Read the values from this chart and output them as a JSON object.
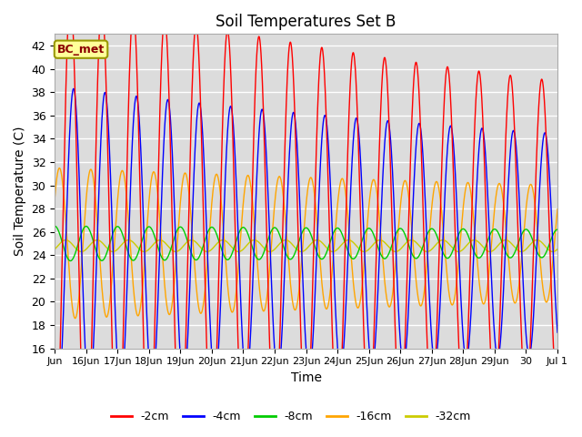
{
  "title": "Soil Temperatures Set B",
  "xlabel": "Time",
  "ylabel": "Soil Temperature (C)",
  "ylim": [
    16,
    43
  ],
  "yticks": [
    16,
    18,
    20,
    22,
    24,
    26,
    28,
    30,
    32,
    34,
    36,
    38,
    40,
    42
  ],
  "annotation": "BC_met",
  "annotation_color": "#8B0000",
  "annotation_bg": "#FFFF99",
  "annotation_border": "#999900",
  "colors": {
    "-2cm": "#FF0000",
    "-4cm": "#0000FF",
    "-8cm": "#00CC00",
    "-16cm": "#FFA500",
    "-32cm": "#CCCC00"
  },
  "plot_bg": "#DCDCDC",
  "n_days": 16,
  "x_tick_labels": [
    "Jun",
    "16Jun",
    "17Jun",
    "18Jun",
    "19Jun",
    "20Jun",
    "21Jun",
    "22Jun",
    "23Jun",
    "24Jun",
    "25Jun",
    "26Jun",
    "27Jun",
    "28Jun",
    "29Jun",
    "30",
    "Jul 1"
  ]
}
